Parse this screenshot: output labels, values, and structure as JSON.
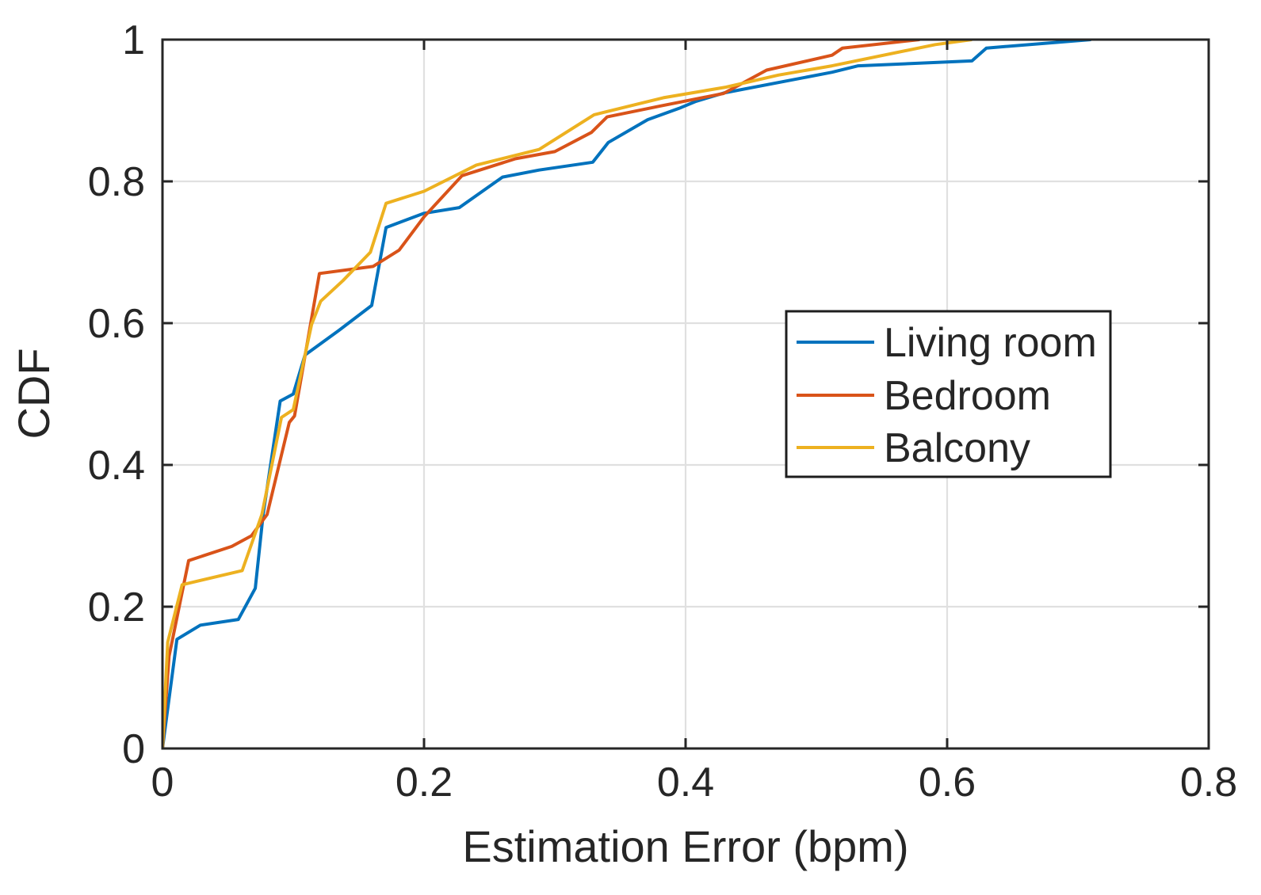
{
  "figure": {
    "background": "#ffffff",
    "axis_color": "#262626",
    "grid_color": "#e0e0e0",
    "text_color": "#262626"
  },
  "chart_data": {
    "type": "line",
    "title": "",
    "xlabel": "Estimation Error (bpm)",
    "ylabel": "CDF",
    "xlim": [
      0,
      0.8
    ],
    "ylim": [
      0,
      1
    ],
    "grid": true,
    "xticks": {
      "values": [
        0,
        0.2,
        0.4,
        0.6,
        0.8
      ],
      "labels": [
        "0",
        "0.2",
        "0.4",
        "0.6",
        "0.8"
      ]
    },
    "yticks": {
      "values": [
        0,
        0.2,
        0.4,
        0.6,
        0.8,
        1
      ],
      "labels": [
        "0",
        "0.2",
        "0.4",
        "0.6",
        "0.8",
        "1"
      ]
    },
    "legend": {
      "position": "inside-right",
      "border_color": "#1e1e1e",
      "background": "#ffffff"
    },
    "series": [
      {
        "name": "Living room",
        "color": "#0072BD",
        "points": [
          [
            0,
            0
          ],
          [
            0.011,
            0.154
          ],
          [
            0.029,
            0.174
          ],
          [
            0.058,
            0.182
          ],
          [
            0.071,
            0.226
          ],
          [
            0.077,
            0.33
          ],
          [
            0.09,
            0.49
          ],
          [
            0.1,
            0.5
          ],
          [
            0.109,
            0.555
          ],
          [
            0.135,
            0.59
          ],
          [
            0.16,
            0.625
          ],
          [
            0.171,
            0.735
          ],
          [
            0.2,
            0.755
          ],
          [
            0.227,
            0.763
          ],
          [
            0.26,
            0.806
          ],
          [
            0.288,
            0.816
          ],
          [
            0.329,
            0.827
          ],
          [
            0.341,
            0.855
          ],
          [
            0.371,
            0.887
          ],
          [
            0.395,
            0.903
          ],
          [
            0.408,
            0.913
          ],
          [
            0.43,
            0.925
          ],
          [
            0.512,
            0.954
          ],
          [
            0.532,
            0.963
          ],
          [
            0.619,
            0.97
          ],
          [
            0.63,
            0.988
          ],
          [
            0.71,
            1
          ]
        ]
      },
      {
        "name": "Bedroom",
        "color": "#D95319",
        "points": [
          [
            0,
            0
          ],
          [
            0.005,
            0.13
          ],
          [
            0.02,
            0.265
          ],
          [
            0.053,
            0.285
          ],
          [
            0.068,
            0.3
          ],
          [
            0.08,
            0.33
          ],
          [
            0.097,
            0.46
          ],
          [
            0.101,
            0.469
          ],
          [
            0.12,
            0.67
          ],
          [
            0.161,
            0.68
          ],
          [
            0.181,
            0.703
          ],
          [
            0.2,
            0.75
          ],
          [
            0.229,
            0.808
          ],
          [
            0.27,
            0.832
          ],
          [
            0.3,
            0.842
          ],
          [
            0.328,
            0.869
          ],
          [
            0.34,
            0.891
          ],
          [
            0.38,
            0.906
          ],
          [
            0.429,
            0.924
          ],
          [
            0.462,
            0.957
          ],
          [
            0.512,
            0.978
          ],
          [
            0.52,
            0.988
          ],
          [
            0.579,
            1
          ]
        ]
      },
      {
        "name": "Balcony",
        "color": "#EDB120",
        "points": [
          [
            0,
            0
          ],
          [
            0.004,
            0.15
          ],
          [
            0.015,
            0.231
          ],
          [
            0.061,
            0.251
          ],
          [
            0.076,
            0.33
          ],
          [
            0.091,
            0.467
          ],
          [
            0.1,
            0.478
          ],
          [
            0.114,
            0.598
          ],
          [
            0.121,
            0.631
          ],
          [
            0.138,
            0.66
          ],
          [
            0.159,
            0.7
          ],
          [
            0.171,
            0.769
          ],
          [
            0.2,
            0.786
          ],
          [
            0.24,
            0.823
          ],
          [
            0.288,
            0.845
          ],
          [
            0.33,
            0.894
          ],
          [
            0.383,
            0.918
          ],
          [
            0.431,
            0.933
          ],
          [
            0.471,
            0.95
          ],
          [
            0.512,
            0.963
          ],
          [
            0.591,
            0.993
          ],
          [
            0.619,
            1
          ]
        ]
      }
    ]
  }
}
